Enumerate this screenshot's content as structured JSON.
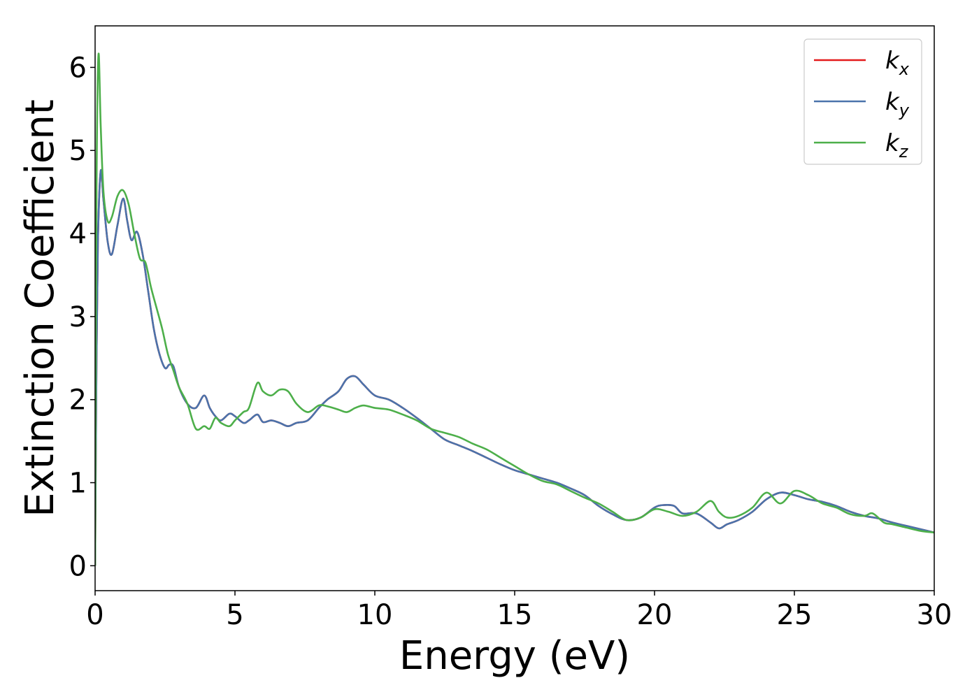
{
  "chart_data": {
    "type": "line",
    "xlabel": "Energy (eV)",
    "ylabel": "Extinction Coefficient",
    "xlim": [
      0,
      30
    ],
    "ylim": [
      -0.3,
      6.5
    ],
    "xticks": [
      0,
      5,
      10,
      15,
      20,
      25,
      30
    ],
    "xtick_labels": [
      "0",
      "5",
      "10",
      "15",
      "20",
      "25",
      "30"
    ],
    "yticks": [
      0,
      1,
      2,
      3,
      4,
      5,
      6
    ],
    "ytick_labels": [
      "0",
      "1",
      "2",
      "3",
      "4",
      "5",
      "6"
    ],
    "grid": false,
    "legend_position": "top-right",
    "series": [
      {
        "name": "k_x",
        "label_base": "k",
        "label_sub": "x",
        "color": "#e41a1c",
        "x": [
          0,
          0.05,
          0.1,
          0.2,
          0.3,
          0.45,
          0.6,
          0.8,
          1.0,
          1.15,
          1.3,
          1.5,
          1.7,
          1.9,
          2.1,
          2.3,
          2.5,
          2.65,
          2.8,
          3.0,
          3.3,
          3.6,
          3.9,
          4.1,
          4.3,
          4.5,
          4.8,
          5.0,
          5.3,
          5.5,
          5.8,
          6.0,
          6.3,
          6.6,
          6.9,
          7.2,
          7.6,
          8.0,
          8.3,
          8.7,
          9.0,
          9.3,
          9.6,
          10.0,
          10.5,
          11.0,
          11.5,
          12.0,
          12.5,
          13.0,
          13.5,
          14.0,
          14.5,
          15.0,
          15.5,
          16.0,
          16.5,
          17.0,
          17.5,
          18.0,
          18.5,
          19.0,
          19.5,
          20.0,
          20.3,
          20.7,
          21.0,
          21.5,
          22.0,
          22.3,
          22.6,
          23.0,
          23.5,
          24.0,
          24.5,
          25.0,
          25.5,
          26.0,
          26.5,
          27.0,
          27.5,
          28.0,
          28.5,
          29.0,
          29.5,
          30.0
        ],
        "y": [
          0,
          2.5,
          3.9,
          4.75,
          4.4,
          3.9,
          3.75,
          4.1,
          4.42,
          4.15,
          3.92,
          4.02,
          3.75,
          3.3,
          2.85,
          2.55,
          2.38,
          2.42,
          2.4,
          2.15,
          1.95,
          1.9,
          2.05,
          1.9,
          1.8,
          1.75,
          1.83,
          1.8,
          1.72,
          1.75,
          1.82,
          1.73,
          1.75,
          1.72,
          1.68,
          1.72,
          1.75,
          1.9,
          2.0,
          2.1,
          2.25,
          2.28,
          2.18,
          2.05,
          2.0,
          1.9,
          1.78,
          1.65,
          1.52,
          1.45,
          1.38,
          1.3,
          1.22,
          1.15,
          1.1,
          1.05,
          1.0,
          0.93,
          0.85,
          0.72,
          0.62,
          0.55,
          0.58,
          0.7,
          0.73,
          0.72,
          0.63,
          0.63,
          0.52,
          0.45,
          0.5,
          0.55,
          0.65,
          0.8,
          0.88,
          0.85,
          0.8,
          0.77,
          0.72,
          0.65,
          0.6,
          0.57,
          0.52,
          0.48,
          0.44,
          0.4
        ]
      },
      {
        "name": "k_y",
        "label_base": "k",
        "label_sub": "y",
        "color": "#4a73ab",
        "x": [
          0,
          0.05,
          0.1,
          0.2,
          0.3,
          0.45,
          0.6,
          0.8,
          1.0,
          1.15,
          1.3,
          1.5,
          1.7,
          1.9,
          2.1,
          2.3,
          2.5,
          2.65,
          2.8,
          3.0,
          3.3,
          3.6,
          3.9,
          4.1,
          4.3,
          4.5,
          4.8,
          5.0,
          5.3,
          5.5,
          5.8,
          6.0,
          6.3,
          6.6,
          6.9,
          7.2,
          7.6,
          8.0,
          8.3,
          8.7,
          9.0,
          9.3,
          9.6,
          10.0,
          10.5,
          11.0,
          11.5,
          12.0,
          12.5,
          13.0,
          13.5,
          14.0,
          14.5,
          15.0,
          15.5,
          16.0,
          16.5,
          17.0,
          17.5,
          18.0,
          18.5,
          19.0,
          19.5,
          20.0,
          20.3,
          20.7,
          21.0,
          21.5,
          22.0,
          22.3,
          22.6,
          23.0,
          23.5,
          24.0,
          24.5,
          25.0,
          25.5,
          26.0,
          26.5,
          27.0,
          27.5,
          28.0,
          28.5,
          29.0,
          29.5,
          30.0
        ],
        "y": [
          0,
          2.5,
          3.9,
          4.75,
          4.4,
          3.9,
          3.75,
          4.1,
          4.42,
          4.15,
          3.92,
          4.02,
          3.75,
          3.3,
          2.85,
          2.55,
          2.38,
          2.42,
          2.4,
          2.15,
          1.95,
          1.9,
          2.05,
          1.9,
          1.8,
          1.75,
          1.83,
          1.8,
          1.72,
          1.75,
          1.82,
          1.73,
          1.75,
          1.72,
          1.68,
          1.72,
          1.75,
          1.9,
          2.0,
          2.1,
          2.25,
          2.28,
          2.18,
          2.05,
          2.0,
          1.9,
          1.78,
          1.65,
          1.52,
          1.45,
          1.38,
          1.3,
          1.22,
          1.15,
          1.1,
          1.05,
          1.0,
          0.93,
          0.85,
          0.72,
          0.62,
          0.55,
          0.58,
          0.7,
          0.73,
          0.72,
          0.63,
          0.63,
          0.52,
          0.45,
          0.5,
          0.55,
          0.65,
          0.8,
          0.88,
          0.85,
          0.8,
          0.77,
          0.72,
          0.65,
          0.6,
          0.57,
          0.52,
          0.48,
          0.44,
          0.4
        ]
      },
      {
        "name": "k_z",
        "label_base": "k",
        "label_sub": "z",
        "color": "#4daf4a",
        "x": [
          0,
          0.05,
          0.12,
          0.2,
          0.3,
          0.45,
          0.6,
          0.8,
          1.0,
          1.2,
          1.4,
          1.6,
          1.8,
          2.0,
          2.2,
          2.4,
          2.6,
          2.8,
          3.0,
          3.3,
          3.6,
          3.9,
          4.1,
          4.3,
          4.5,
          4.8,
          5.0,
          5.3,
          5.5,
          5.8,
          6.0,
          6.3,
          6.6,
          6.9,
          7.2,
          7.6,
          8.0,
          8.3,
          8.7,
          9.0,
          9.3,
          9.6,
          10.0,
          10.5,
          11.0,
          11.5,
          12.0,
          12.5,
          13.0,
          13.5,
          14.0,
          14.5,
          15.0,
          15.5,
          16.0,
          16.5,
          17.0,
          17.5,
          18.0,
          18.5,
          19.0,
          19.5,
          20.0,
          20.5,
          21.0,
          21.5,
          22.0,
          22.3,
          22.6,
          23.0,
          23.5,
          24.0,
          24.5,
          25.0,
          25.5,
          26.0,
          26.5,
          27.0,
          27.5,
          27.8,
          28.2,
          28.5,
          29.0,
          29.5,
          30.0
        ],
        "y": [
          0,
          4.5,
          6.15,
          5.3,
          4.5,
          4.15,
          4.2,
          4.45,
          4.52,
          4.35,
          4.0,
          3.7,
          3.65,
          3.35,
          3.1,
          2.85,
          2.55,
          2.35,
          2.15,
          1.95,
          1.65,
          1.68,
          1.65,
          1.78,
          1.72,
          1.68,
          1.75,
          1.85,
          1.9,
          2.2,
          2.1,
          2.05,
          2.12,
          2.1,
          1.95,
          1.85,
          1.93,
          1.92,
          1.88,
          1.85,
          1.9,
          1.93,
          1.9,
          1.88,
          1.82,
          1.75,
          1.65,
          1.6,
          1.55,
          1.47,
          1.4,
          1.3,
          1.2,
          1.1,
          1.02,
          0.98,
          0.9,
          0.82,
          0.75,
          0.65,
          0.55,
          0.58,
          0.68,
          0.65,
          0.6,
          0.65,
          0.78,
          0.65,
          0.58,
          0.6,
          0.7,
          0.88,
          0.75,
          0.9,
          0.85,
          0.75,
          0.7,
          0.62,
          0.6,
          0.63,
          0.52,
          0.5,
          0.46,
          0.42,
          0.4
        ]
      }
    ]
  }
}
